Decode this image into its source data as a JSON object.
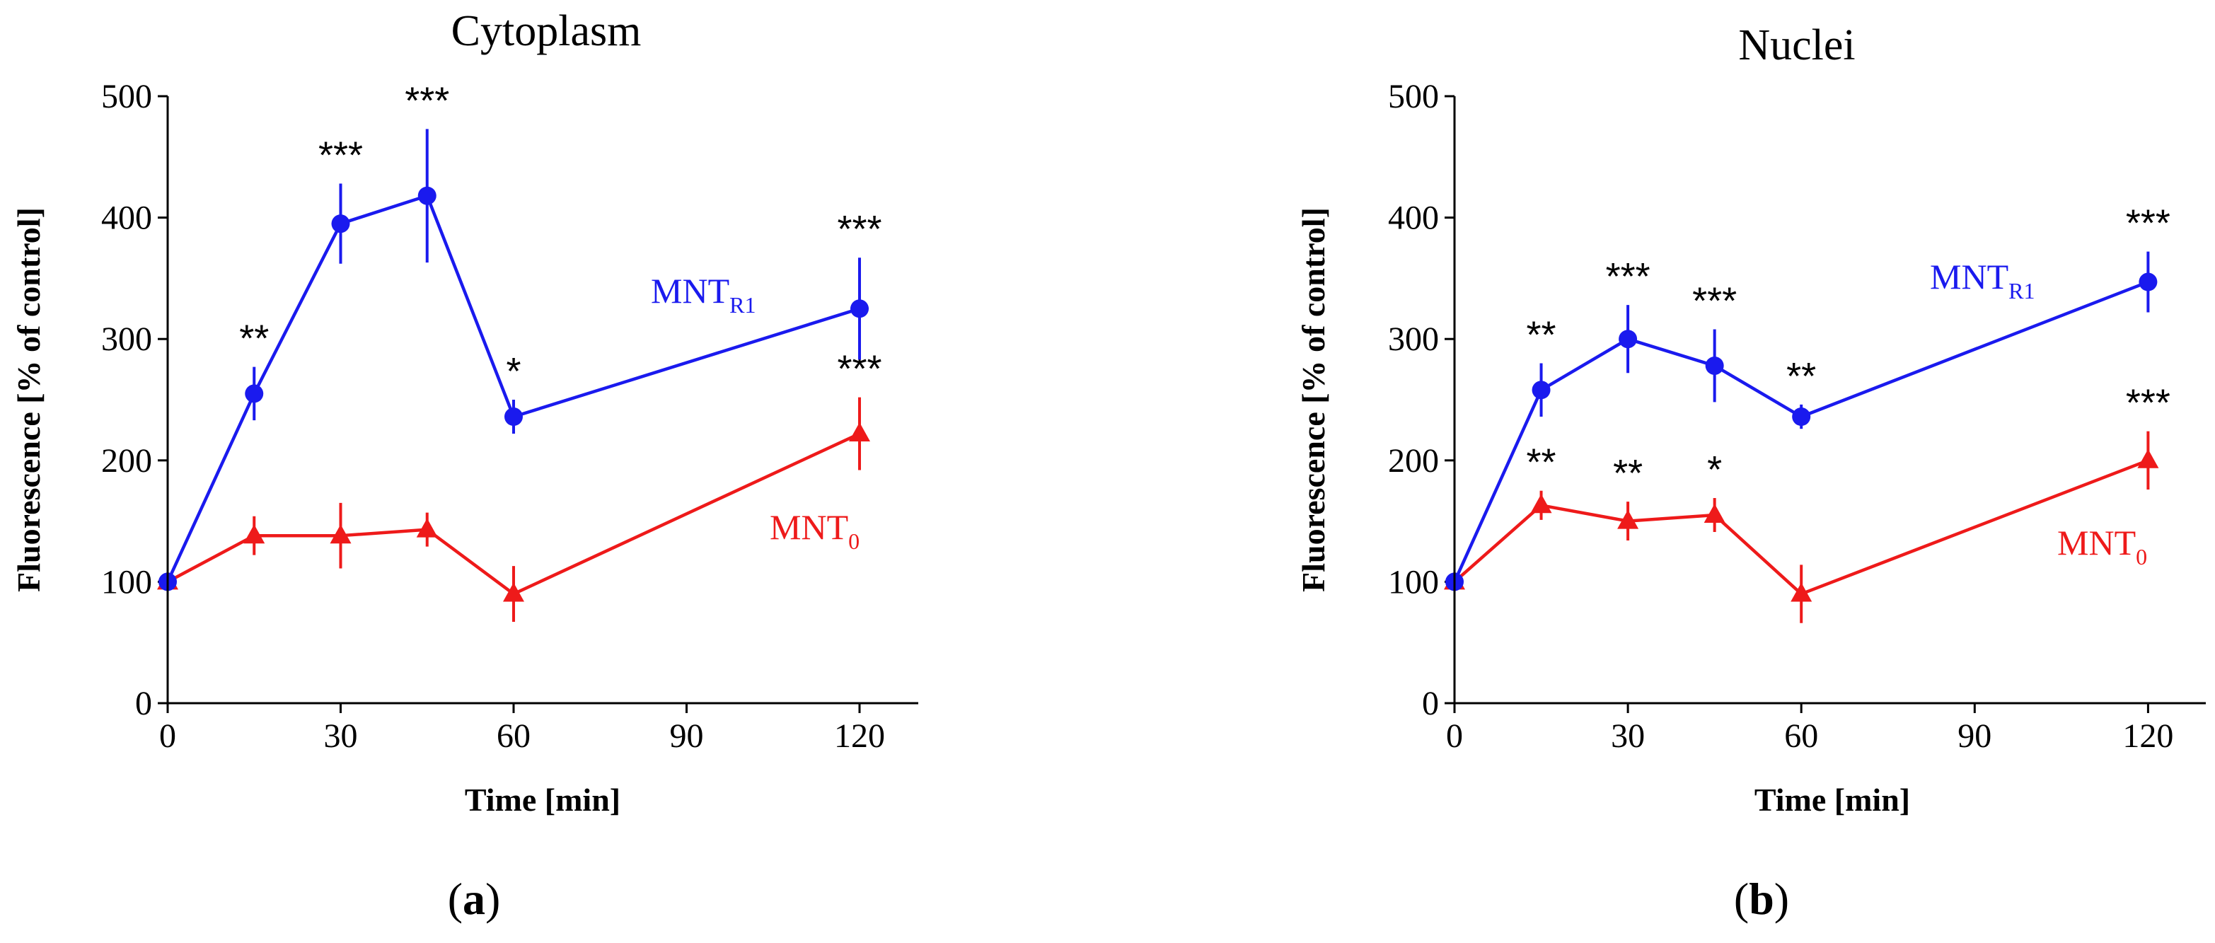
{
  "chart_data": [
    {
      "type": "line",
      "panel": "a",
      "title": "Cytoplasm",
      "xlabel": "Time [min]",
      "ylabel": "Fluorescence [% of control]",
      "xlim": [
        0,
        130
      ],
      "ylim": [
        0,
        500
      ],
      "xticks": [
        0,
        30,
        60,
        90,
        120
      ],
      "yticks": [
        0,
        100,
        200,
        300,
        400,
        500
      ],
      "grid": false,
      "series": [
        {
          "name": "MNT",
          "subscript": "R1",
          "color": "#1a1aee",
          "marker": "circle",
          "x": [
            0,
            15,
            30,
            45,
            60,
            120
          ],
          "values": [
            100,
            255,
            395,
            418,
            236,
            325
          ],
          "errors": [
            0,
            22,
            33,
            55,
            14,
            42
          ],
          "significance": [
            "",
            "**",
            "***",
            "***",
            "*",
            "***"
          ]
        },
        {
          "name": "MNT",
          "subscript": "0",
          "color": "#ee1a1a",
          "marker": "triangle",
          "x": [
            0,
            15,
            30,
            45,
            60,
            120
          ],
          "values": [
            100,
            138,
            138,
            143,
            90,
            222
          ],
          "errors": [
            0,
            16,
            27,
            14,
            23,
            30
          ],
          "significance": [
            "",
            "",
            "",
            "",
            "",
            "***"
          ]
        }
      ]
    },
    {
      "type": "line",
      "panel": "b",
      "title": "Nuclei",
      "xlabel": "Time [min]",
      "ylabel": "Fluorescence [% of control]",
      "xlim": [
        0,
        130
      ],
      "ylim": [
        0,
        500
      ],
      "xticks": [
        0,
        30,
        60,
        90,
        120
      ],
      "yticks": [
        0,
        100,
        200,
        300,
        400,
        500
      ],
      "grid": false,
      "series": [
        {
          "name": "MNT",
          "subscript": "R1",
          "color": "#1a1aee",
          "marker": "circle",
          "x": [
            0,
            15,
            30,
            45,
            60,
            120
          ],
          "values": [
            100,
            258,
            300,
            278,
            236,
            347
          ],
          "errors": [
            0,
            22,
            28,
            30,
            10,
            25
          ],
          "significance": [
            "",
            "**",
            "***",
            "***",
            "**",
            "***"
          ]
        },
        {
          "name": "MNT",
          "subscript": "0",
          "color": "#ee1a1a",
          "marker": "triangle",
          "x": [
            0,
            15,
            30,
            45,
            60,
            120
          ],
          "values": [
            100,
            163,
            150,
            155,
            90,
            200
          ],
          "errors": [
            0,
            12,
            16,
            14,
            24,
            24
          ],
          "significance": [
            "",
            "**",
            "**",
            "*",
            "",
            "***"
          ]
        }
      ]
    }
  ]
}
